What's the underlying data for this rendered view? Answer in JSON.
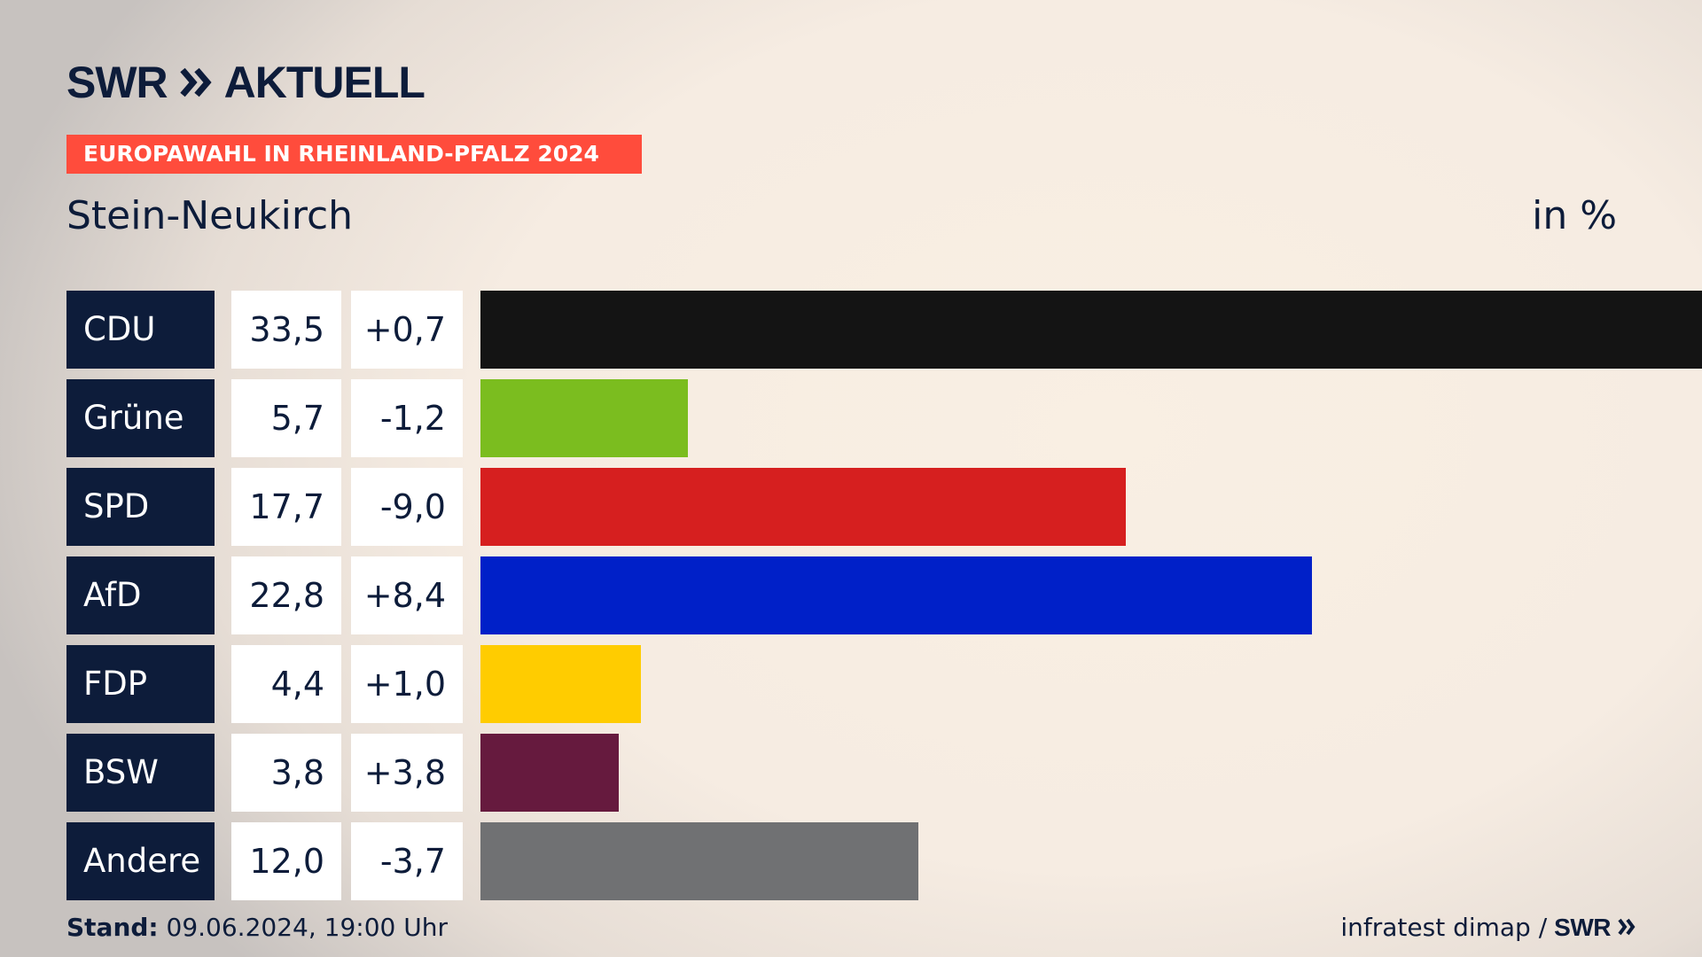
{
  "header": {
    "brand_swr": "SWR",
    "brand_aktuell": "AKTUELL",
    "ribbon": "EUROPAWAHL IN RHEINLAND-PFALZ 2024",
    "subtitle": "Stein-Neukirch",
    "unit": "in %"
  },
  "colors": {
    "navy": "#0d1c3a",
    "ribbon": "#ff4c3c"
  },
  "chart_data": {
    "type": "bar",
    "orientation": "horizontal",
    "title": "Stein-Neukirch",
    "unit": "in %",
    "categories": [
      "CDU",
      "Grüne",
      "SPD",
      "AfD",
      "FDP",
      "BSW",
      "Andere"
    ],
    "values": [
      33.5,
      5.7,
      17.7,
      22.8,
      4.4,
      3.8,
      12.0
    ],
    "value_labels": [
      "33,5",
      "5,7",
      "17,7",
      "22,8",
      "4,4",
      "3,8",
      "12,0"
    ],
    "diff_labels": [
      "+0,7",
      "-1,2",
      "-9,0",
      "+8,4",
      "+1,0",
      "+3,8",
      "-3,7"
    ],
    "bar_colors": [
      "#141414",
      "#7bbd1f",
      "#d61f1f",
      "#0020c8",
      "#ffcc00",
      "#661a3e",
      "#707173"
    ],
    "xlim": [
      0,
      33.5
    ],
    "grid": false,
    "legend": "none"
  },
  "footer": {
    "stand_label": "Stand:",
    "stand_value": " 09.06.2024, 19:00 Uhr",
    "source": "infratest dimap /",
    "source_brand": "SWR"
  }
}
